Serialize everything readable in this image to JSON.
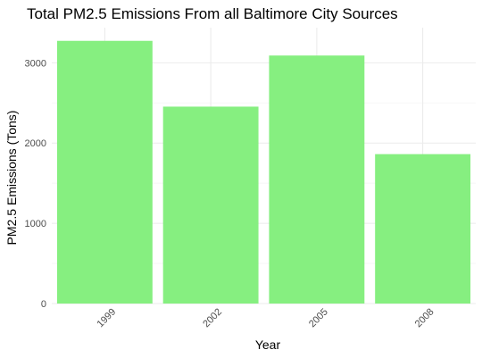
{
  "chart_data": {
    "type": "bar",
    "title": "Total PM2.5 Emissions From all Baltimore City Sources",
    "xlabel": "Year",
    "ylabel": "PM2.5 Emissions (Tons)",
    "categories": [
      "1999",
      "2002",
      "2005",
      "2008"
    ],
    "values": [
      3274,
      2454,
      3091,
      1862
    ],
    "ylim": [
      0,
      3438
    ],
    "yticks": [
      0,
      1000,
      2000,
      3000
    ],
    "ytick_labels": [
      "0",
      "1000",
      "2000",
      "3000"
    ],
    "grid": true,
    "legend": "none",
    "bar_color": "#86ef80",
    "grid_major_color": "#ebebeb",
    "grid_minor_color": "#f5f5f5"
  }
}
